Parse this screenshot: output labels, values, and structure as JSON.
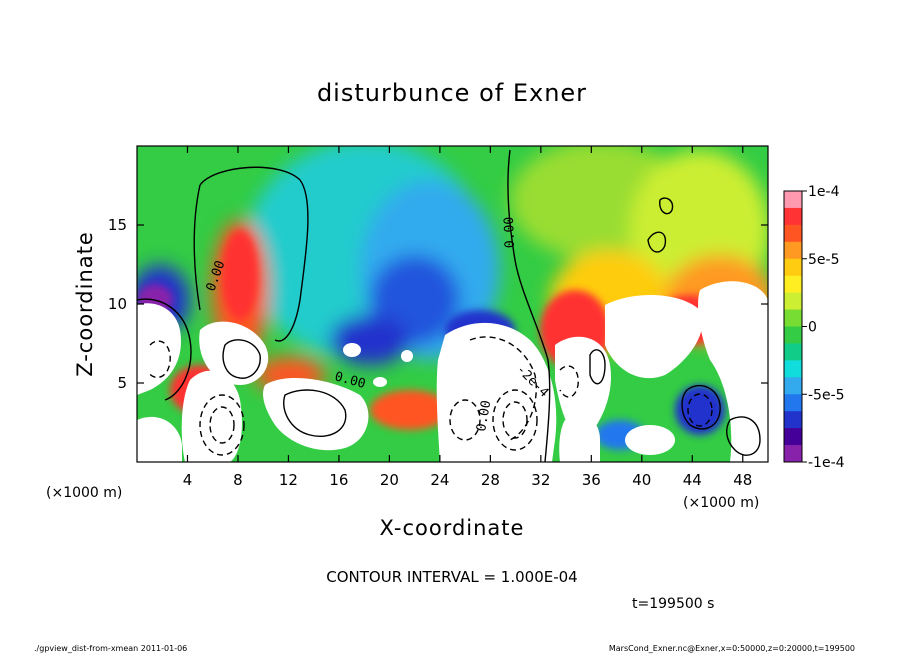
{
  "chart_data": {
    "type": "heatmap",
    "title": "disturbunce of Exner",
    "xlabel": "X-coordinate",
    "ylabel": "Z-coordinate",
    "x_unit_left": "(×1000 m)",
    "x_unit_right": "(×1000 m)",
    "xlim": [
      0,
      50
    ],
    "ylim": [
      0,
      20
    ],
    "x_ticks": [
      4,
      8,
      12,
      16,
      20,
      24,
      28,
      32,
      36,
      40,
      44,
      48
    ],
    "y_ticks": [
      5,
      10,
      15
    ],
    "colorbar": {
      "range": [
        -0.0001,
        0.0001
      ],
      "tick_values": [
        0.0001,
        5e-05,
        0,
        -5e-05,
        -0.0001
      ],
      "tick_labels": [
        "1e-4",
        "5e-5",
        "0",
        "-5e-5",
        "-1e-4"
      ],
      "colors": [
        "#ff99b0",
        "#ff3333",
        "#ff5522",
        "#ff9922",
        "#ffcc11",
        "#ffee22",
        "#ccee33",
        "#77dd33",
        "#33cc44",
        "#11cc88",
        "#11dddd",
        "#33aaee",
        "#2277ee",
        "#2233cc",
        "#440099",
        "#8822aa"
      ]
    },
    "contour_labels": [
      "0.00",
      "0.00",
      "0.00",
      "-2e-4",
      "0.00"
    ],
    "contour_interval_label": "CONTOUR INTERVAL = 1.000E-04",
    "time_label": "t=199500 s",
    "fields": [
      {
        "x": 6.5,
        "z": 13.5,
        "v": 0.0
      },
      {
        "x": 7.5,
        "z": 10.0,
        "v": 9e-05
      },
      {
        "x": 3.0,
        "z": 11.0,
        "v": 2e-05
      },
      {
        "x": 1.5,
        "z": 10.5,
        "v": -0.0001
      },
      {
        "x": 4.5,
        "z": 3.0,
        "v": -0.0002
      },
      {
        "x": 11.5,
        "z": 5.5,
        "v": 0.0002
      },
      {
        "x": 19.0,
        "z": 14.0,
        "v": -6e-05
      },
      {
        "x": 22.0,
        "z": 9.5,
        "v": -9e-05
      },
      {
        "x": 21.0,
        "z": 3.0,
        "v": 0.0001
      },
      {
        "x": 27.0,
        "z": 2.5,
        "v": -0.0001
      },
      {
        "x": 30.5,
        "z": 3.5,
        "v": -0.0003
      },
      {
        "x": 35.0,
        "z": 6.0,
        "v": 0.0002
      },
      {
        "x": 40.0,
        "z": 13.0,
        "v": 3e-05
      },
      {
        "x": 44.5,
        "z": 10.5,
        "v": 8e-05
      },
      {
        "x": 41.5,
        "z": 3.5,
        "v": -0.0001
      },
      {
        "x": 46.5,
        "z": 2.5,
        "v": 0.0001
      }
    ]
  },
  "footer": {
    "left": "./gpview_dist-from-xmean  2011-01-06",
    "right": "MarsCond_Exner.nc@Exner,x=0:50000,z=0:20000,t=199500"
  }
}
